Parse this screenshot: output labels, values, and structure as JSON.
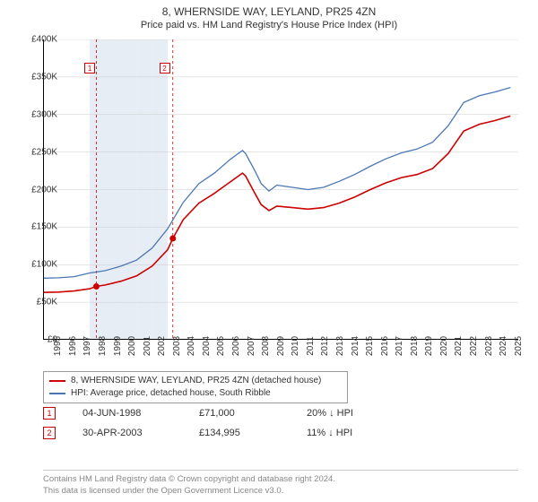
{
  "title": "8, WHERNSIDE WAY, LEYLAND, PR25 4ZN",
  "subtitle": "Price paid vs. HM Land Registry's House Price Index (HPI)",
  "chart": {
    "type": "line",
    "xlim": [
      1995,
      2025.5
    ],
    "ylim": [
      0,
      400000
    ],
    "ytick_step": 50000,
    "yticks": [
      "£0",
      "£50K",
      "£100K",
      "£150K",
      "£200K",
      "£250K",
      "£300K",
      "£350K",
      "£400K"
    ],
    "xticks": [
      1995,
      1996,
      1997,
      1998,
      1999,
      2000,
      2001,
      2002,
      2003,
      2004,
      2004,
      2005,
      2006,
      2007,
      2008,
      2009,
      2010,
      2011,
      2012,
      2013,
      2014,
      2015,
      2016,
      2017,
      2018,
      2019,
      2020,
      2021,
      2022,
      2023,
      2024,
      2025
    ],
    "band_years": [
      1998,
      1999,
      2000,
      2001,
      2002
    ],
    "band_color": "#e6edf5",
    "background_color": "#ffffff",
    "grid_color": "#cccccc",
    "series": [
      {
        "name": "8, WHERNSIDE WAY, LEYLAND, PR25 4ZN (detached house)",
        "color": "#cc0000",
        "width": 1.6,
        "points": [
          [
            1995,
            63000
          ],
          [
            1996,
            63500
          ],
          [
            1997,
            65000
          ],
          [
            1998,
            68000
          ],
          [
            1998.42,
            71000
          ],
          [
            1999,
            73000
          ],
          [
            2000,
            78000
          ],
          [
            2001,
            85000
          ],
          [
            2002,
            98000
          ],
          [
            2003,
            120000
          ],
          [
            2003.33,
            134995
          ],
          [
            2004,
            160000
          ],
          [
            2005,
            182000
          ],
          [
            2006,
            195000
          ],
          [
            2007,
            210000
          ],
          [
            2007.8,
            222000
          ],
          [
            2008,
            218000
          ],
          [
            2008.6,
            195000
          ],
          [
            2009,
            180000
          ],
          [
            2009.5,
            172000
          ],
          [
            2010,
            178000
          ],
          [
            2011,
            176000
          ],
          [
            2012,
            174000
          ],
          [
            2013,
            176000
          ],
          [
            2014,
            182000
          ],
          [
            2015,
            190000
          ],
          [
            2016,
            200000
          ],
          [
            2017,
            209000
          ],
          [
            2018,
            216000
          ],
          [
            2019,
            220000
          ],
          [
            2020,
            228000
          ],
          [
            2021,
            248000
          ],
          [
            2022,
            278000
          ],
          [
            2023,
            287000
          ],
          [
            2024,
            292000
          ],
          [
            2025,
            298000
          ]
        ]
      },
      {
        "name": "HPI: Average price, detached house, South Ribble",
        "color": "#4a77b4",
        "width": 1.3,
        "points": [
          [
            1995,
            82000
          ],
          [
            1996,
            82500
          ],
          [
            1997,
            84000
          ],
          [
            1998,
            89000
          ],
          [
            1999,
            92000
          ],
          [
            2000,
            98000
          ],
          [
            2001,
            106000
          ],
          [
            2002,
            122000
          ],
          [
            2003,
            148000
          ],
          [
            2004,
            183000
          ],
          [
            2005,
            208000
          ],
          [
            2006,
            222000
          ],
          [
            2007,
            240000
          ],
          [
            2007.8,
            252000
          ],
          [
            2008,
            248000
          ],
          [
            2008.6,
            225000
          ],
          [
            2009,
            208000
          ],
          [
            2009.5,
            198000
          ],
          [
            2010,
            206000
          ],
          [
            2011,
            203000
          ],
          [
            2012,
            200000
          ],
          [
            2013,
            203000
          ],
          [
            2014,
            211000
          ],
          [
            2015,
            220000
          ],
          [
            2016,
            231000
          ],
          [
            2017,
            241000
          ],
          [
            2018,
            249000
          ],
          [
            2019,
            254000
          ],
          [
            2020,
            263000
          ],
          [
            2021,
            285000
          ],
          [
            2022,
            316000
          ],
          [
            2023,
            325000
          ],
          [
            2024,
            330000
          ],
          [
            2025,
            336000
          ]
        ]
      }
    ],
    "sale_markers": [
      {
        "n": "1",
        "x": 1998.42,
        "y": 71000,
        "label_x": 1998.0
      },
      {
        "n": "2",
        "x": 2003.33,
        "y": 134995,
        "label_x": 2002.8
      }
    ],
    "dash_color": "#cc0000",
    "marker_dot_color": "#cc0000"
  },
  "legend": {
    "items": [
      {
        "color": "#cc0000",
        "label": "8, WHERNSIDE WAY, LEYLAND, PR25 4ZN (detached house)"
      },
      {
        "color": "#4a77b4",
        "label": "HPI: Average price, detached house, South Ribble"
      }
    ]
  },
  "sales": [
    {
      "n": "1",
      "date": "04-JUN-1998",
      "price": "£71,000",
      "delta": "20% ↓ HPI"
    },
    {
      "n": "2",
      "date": "30-APR-2003",
      "price": "£134,995",
      "delta": "11% ↓ HPI"
    }
  ],
  "attribution": {
    "line1": "Contains HM Land Registry data © Crown copyright and database right 2024.",
    "line2": "This data is licensed under the Open Government Licence v3.0."
  }
}
